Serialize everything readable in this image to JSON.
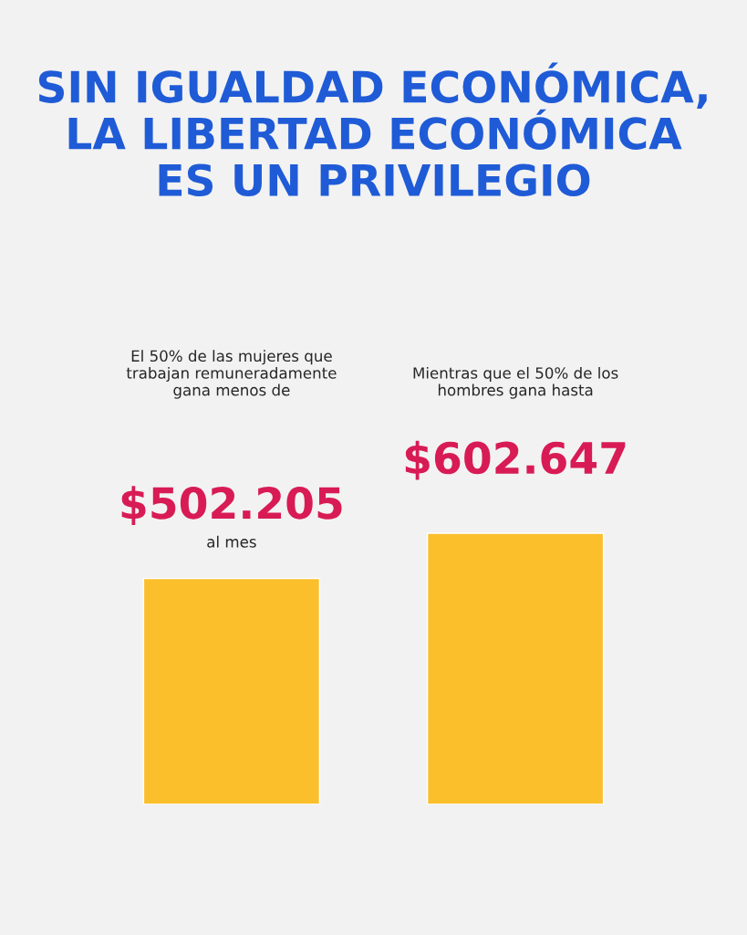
{
  "chart_data": {
    "type": "bar",
    "title": "SIN IGUALDAD ECONÓMICA,\nLA LIBERTAD ECONÓMICA\nES UN PRIVILEGIO",
    "categories": [
      "El 50% de las mujeres que\ntrabajan remuneradamente\ngana menos de",
      "Mientras que el 50% de los\nhombres gana hasta"
    ],
    "values": [
      502205,
      602647
    ],
    "value_labels": [
      "$502.205",
      "$602.647"
    ],
    "colors": [
      "#fbbf2c",
      "#fbbf2c"
    ],
    "annotations": [
      "al mes"
    ]
  }
}
